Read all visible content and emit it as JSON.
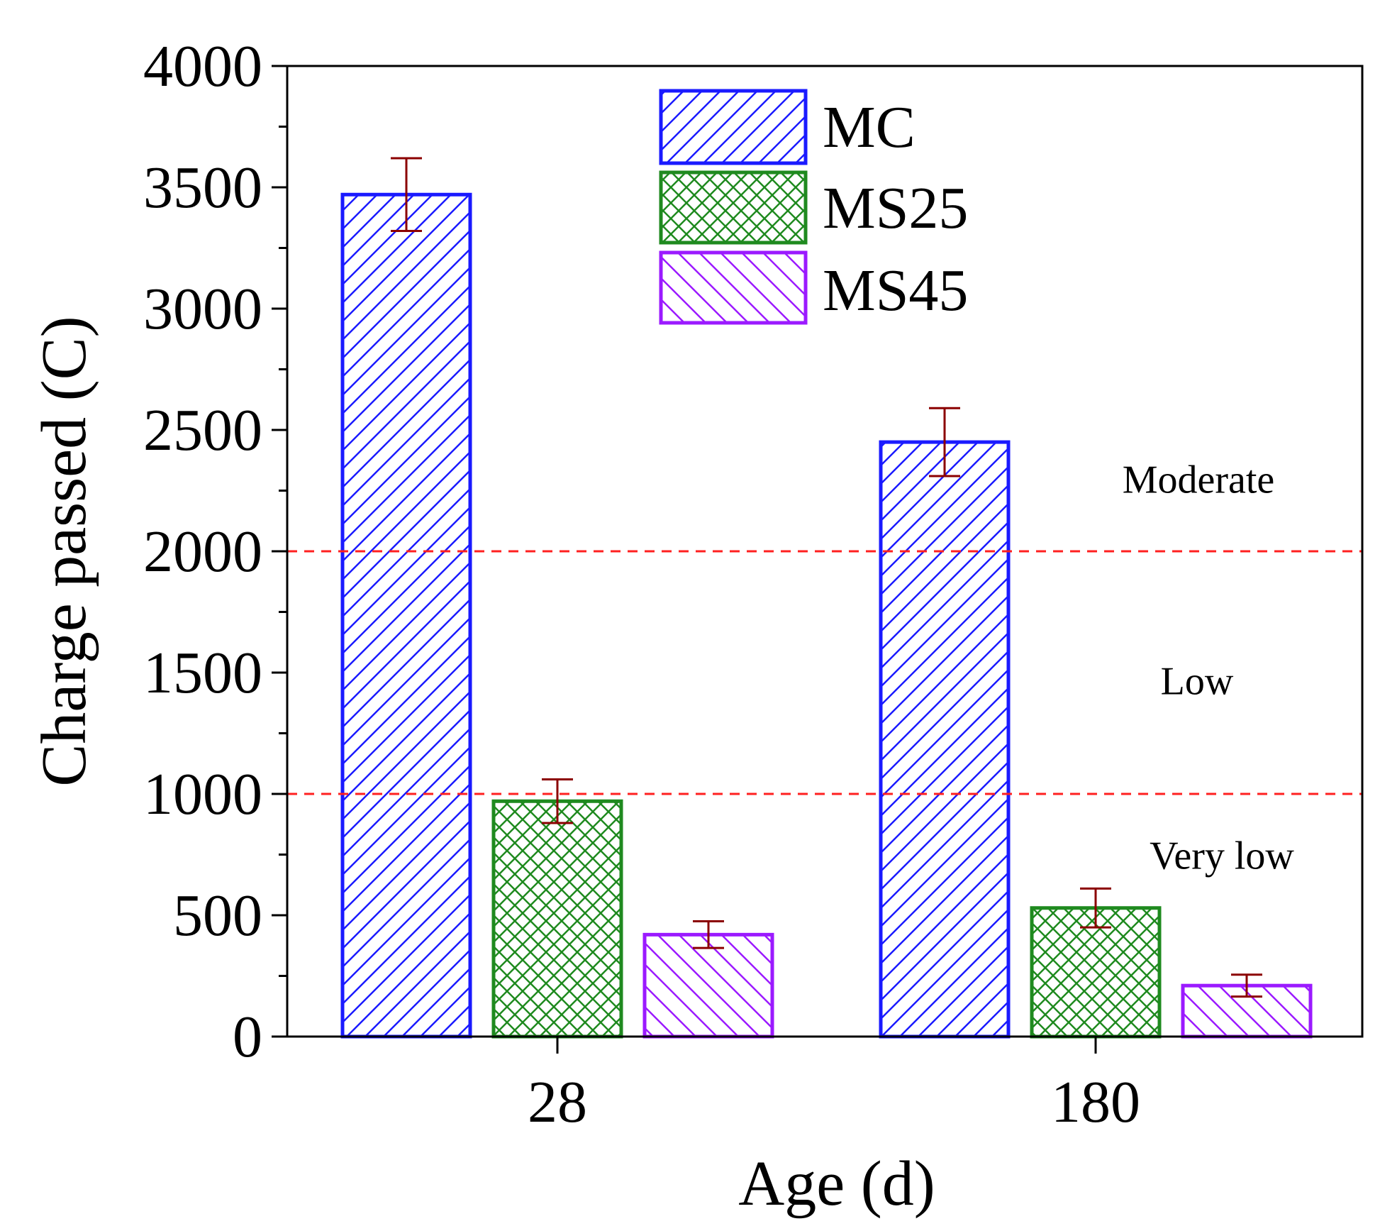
{
  "chart_data": {
    "type": "bar",
    "title": "",
    "xlabel": "Age (d)",
    "ylabel": "Charge passed (C)",
    "categories": [
      "28",
      "180"
    ],
    "ylim": [
      0,
      4000
    ],
    "yticks": [
      "0",
      "500",
      "1000",
      "1500",
      "2000",
      "2500",
      "3000",
      "3500",
      "4000"
    ],
    "ytick_values": [
      0,
      500,
      1000,
      1500,
      2000,
      2500,
      3000,
      3500,
      4000
    ],
    "grid": false,
    "legend_position": "top-center",
    "series": [
      {
        "name": "MC",
        "values": [
          3470,
          2450
        ],
        "errors": [
          150,
          140
        ],
        "color": "#1a1aff",
        "pattern": "diagonal-up"
      },
      {
        "name": "MS25",
        "values": [
          970,
          530
        ],
        "errors": [
          90,
          80
        ],
        "color": "#1f8a1f",
        "pattern": "crosshatch"
      },
      {
        "name": "MS45",
        "values": [
          420,
          210
        ],
        "errors": [
          55,
          45
        ],
        "color": "#9b1aff",
        "pattern": "diagonal-down"
      }
    ],
    "error_bar_color": "#8b0000",
    "reference_lines": [
      {
        "value": 2000,
        "color": "#ff2020",
        "style": "dashed"
      },
      {
        "value": 1000,
        "color": "#ff2020",
        "style": "dashed"
      }
    ],
    "annotations": [
      {
        "text": "Moderate",
        "value": 2300
      },
      {
        "text": "Low",
        "value": 1470
      },
      {
        "text": "Very low",
        "value": 750
      }
    ]
  }
}
